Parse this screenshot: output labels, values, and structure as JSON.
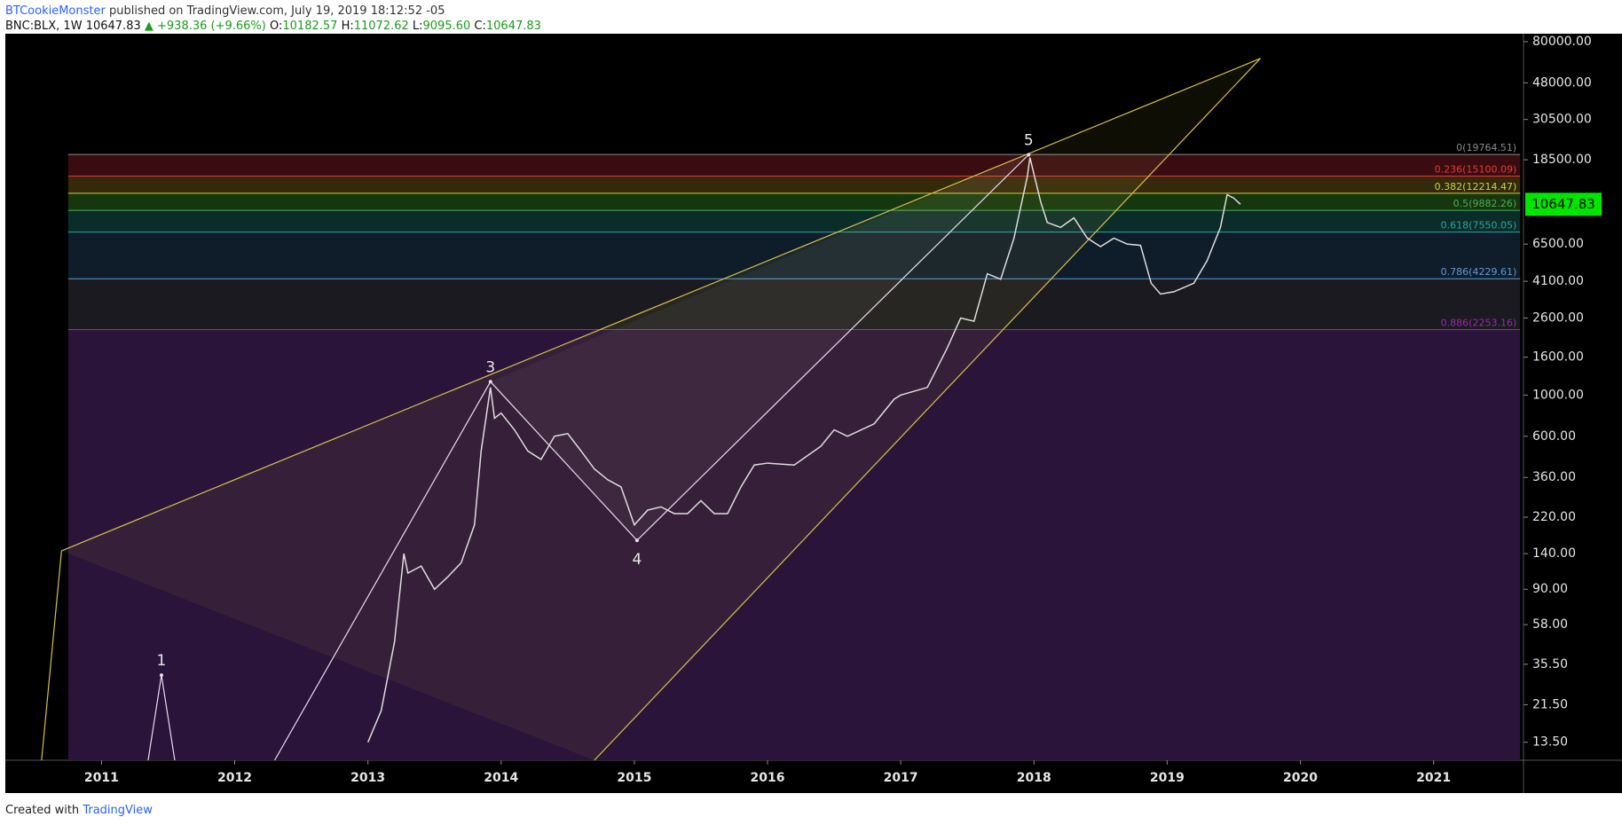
{
  "header": {
    "author": "BTCookieMonster",
    "published": " published on TradingView.com, July 19, 2019 18:12:52 -05",
    "symbol": "BNC:BLX, 1W",
    "last": "10647.83",
    "change": "▲ +938.36 (+9.66%)",
    "ohlc": [
      {
        "key": "O:",
        "val": "10182.57"
      },
      {
        "key": "H:",
        "val": "11072.62"
      },
      {
        "key": "L:",
        "val": "9095.60"
      },
      {
        "key": "C:",
        "val": "10647.83"
      }
    ]
  },
  "footer": {
    "created": "Created with",
    "brand": "TradingView"
  },
  "chart_data": {
    "type": "line",
    "log_scale": true,
    "xlim": [
      2010.278,
      2021.675
    ],
    "xticks": [
      2011,
      2012,
      2013,
      2014,
      2015,
      2016,
      2017,
      2018,
      2019,
      2020,
      2021
    ],
    "ylim": [
      10.8,
      88300
    ],
    "yticks": [
      {
        "value": 80000,
        "label": "80000.00"
      },
      {
        "value": 48000,
        "label": "48000.00"
      },
      {
        "value": 30500,
        "label": "30500.00"
      },
      {
        "value": 18500,
        "label": "18500.00"
      },
      {
        "value": 6500,
        "label": "6500.00"
      },
      {
        "value": 4100,
        "label": "4100.00"
      },
      {
        "value": 2600,
        "label": "2600.00"
      },
      {
        "value": 1600,
        "label": "1600.00"
      },
      {
        "value": 1000,
        "label": "1000.00"
      },
      {
        "value": 600,
        "label": "600.00"
      },
      {
        "value": 360,
        "label": "360.00"
      },
      {
        "value": 220,
        "label": "220.00"
      },
      {
        "value": 140,
        "label": "140.00"
      },
      {
        "value": 90,
        "label": "90.00"
      },
      {
        "value": 58,
        "label": "58.00"
      },
      {
        "value": 35.5,
        "label": "35.50"
      },
      {
        "value": 21.5,
        "label": "21.50"
      },
      {
        "value": 13.5,
        "label": "13.50"
      }
    ],
    "series": [
      {
        "name": "BNC:BLX",
        "color": "#dddddd",
        "x": [
          2013.0,
          2013.1,
          2013.2,
          2013.27,
          2013.3,
          2013.4,
          2013.5,
          2013.6,
          2013.7,
          2013.8,
          2013.85,
          2013.92,
          2013.95,
          2014.0,
          2014.1,
          2014.2,
          2014.3,
          2014.4,
          2014.5,
          2014.6,
          2014.7,
          2014.8,
          2014.9,
          2015.0,
          2015.1,
          2015.2,
          2015.3,
          2015.4,
          2015.5,
          2015.6,
          2015.7,
          2015.8,
          2015.9,
          2016.0,
          2016.2,
          2016.4,
          2016.5,
          2016.6,
          2016.8,
          2016.95,
          2017.0,
          2017.2,
          2017.35,
          2017.45,
          2017.55,
          2017.65,
          2017.75,
          2017.85,
          2017.95,
          2017.97,
          2018.05,
          2018.1,
          2018.2,
          2018.3,
          2018.4,
          2018.5,
          2018.6,
          2018.7,
          2018.8,
          2018.88,
          2018.95,
          2019.05,
          2019.2,
          2019.3,
          2019.4,
          2019.45,
          2019.5,
          2019.55
        ],
        "values": [
          13.5,
          20,
          47,
          140,
          110,
          120,
          90,
          105,
          125,
          200,
          500,
          1100,
          750,
          800,
          650,
          500,
          450,
          600,
          620,
          500,
          400,
          350,
          320,
          200,
          240,
          250,
          230,
          230,
          270,
          230,
          230,
          320,
          420,
          430,
          420,
          530,
          650,
          600,
          700,
          950,
          1000,
          1100,
          1800,
          2600,
          2500,
          4500,
          4200,
          7000,
          15000,
          19000,
          11000,
          8500,
          8000,
          9000,
          7000,
          6300,
          7000,
          6500,
          6400,
          4000,
          3500,
          3600,
          4000,
          5300,
          8000,
          12000,
          11500,
          10647.83
        ]
      }
    ],
    "current_price": {
      "value": 10647.83,
      "label": "10647.83",
      "color": "#00e600"
    },
    "fib_range": [
      2010.75,
      2021.65
    ],
    "fib_levels": [
      {
        "label": "0(19764.51)",
        "value": 19764.51,
        "color": "#8a8a8a",
        "zone_color": "#3a0c12"
      },
      {
        "label": "0.236(15100.09)",
        "value": 15100.09,
        "color": "#e53935",
        "zone_color": "#35290c"
      },
      {
        "label": "0.382(12214.47)",
        "value": 12214.47,
        "color": "#c6d43a",
        "zone_color": "#15360f"
      },
      {
        "label": "0.5(9882.26)",
        "value": 9882.26,
        "color": "#4caf50",
        "zone_color": "#0b2d2a"
      },
      {
        "label": "0.618(7550.05)",
        "value": 7550.05,
        "color": "#26a6a6",
        "zone_color": "#0f1d2b"
      },
      {
        "label": "0.786(4229.61)",
        "value": 4229.61,
        "color": "#5b9bd5",
        "zone_color": "#1b1a20"
      },
      {
        "label": "0.886(2253.16)",
        "value": 2253.16,
        "color": "#9c27b0",
        "zone_color": "#2a1439"
      }
    ],
    "waves": [
      {
        "label": "1",
        "x": 2011.45,
        "y": 31
      },
      {
        "label": "3",
        "x": 2013.92,
        "y": 1180
      },
      {
        "label": "4",
        "x": 2015.02,
        "y": 165
      },
      {
        "label": "5",
        "x": 2017.96,
        "y": 19700
      }
    ],
    "channel": {
      "color": "#d4c24a",
      "upper": [
        [
          2010.7,
          145
        ],
        [
          2019.7,
          65000
        ]
      ],
      "lower": [
        [
          2014.7,
          10.8
        ],
        [
          2019.7,
          65000
        ]
      ],
      "start": [
        [
          2010.55,
          10.8
        ],
        [
          2010.7,
          145
        ]
      ]
    }
  }
}
